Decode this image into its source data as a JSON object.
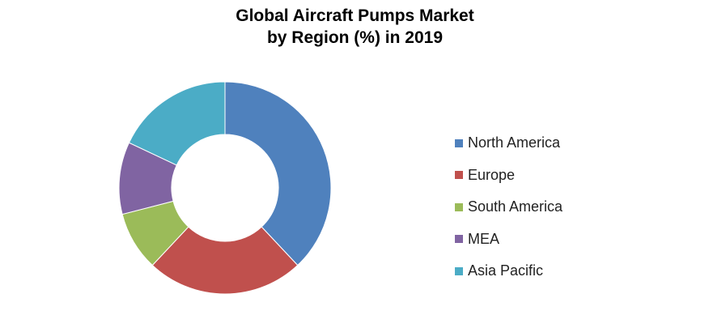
{
  "chart_data": {
    "type": "pie",
    "variant": "donut",
    "title_lines": [
      "Global Aircraft Pumps Market",
      "by Region (%) in 2019"
    ],
    "categories": [
      "North America",
      "Europe",
      "South America",
      "MEA",
      "Asia Pacific"
    ],
    "values": [
      38,
      24,
      9,
      11,
      18
    ],
    "colors": [
      "#4f81bd",
      "#c0504d",
      "#9bbb59",
      "#8064a2",
      "#4bacc6"
    ],
    "legend_position": "right"
  }
}
